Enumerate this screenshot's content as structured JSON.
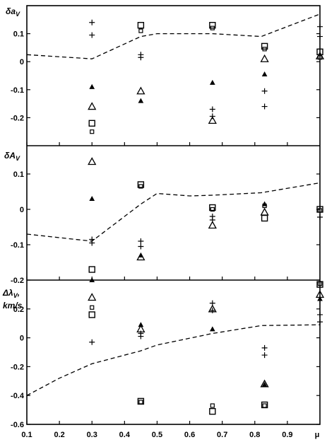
{
  "chart_data": {
    "type": "scatter",
    "x_ticks": [
      "0.1",
      "0.2",
      "0.3",
      "0.4",
      "0.5",
      "0.6",
      "0.7",
      "0.8",
      "0.9"
    ],
    "x_axis_symbol": "μ",
    "xlim": [
      0.1,
      1.0
    ],
    "panels": [
      {
        "ylabel": "δa_V",
        "ylim": [
          -0.3,
          0.2
        ],
        "y_ticks": [
          "0.1",
          "0",
          "-0.1",
          "-0.2"
        ],
        "y_tick_values": [
          0.1,
          0,
          -0.1,
          -0.2
        ],
        "dashed": {
          "x": [
            0.1,
            0.3,
            0.45,
            0.5,
            0.67,
            0.82,
            1.0
          ],
          "y": [
            0.025,
            0.01,
            0.09,
            0.1,
            0.1,
            0.09,
            0.17
          ]
        },
        "points": [
          {
            "m": "+",
            "x": 0.3,
            "y": 0.14
          },
          {
            "m": "+",
            "x": 0.3,
            "y": 0.095
          },
          {
            "m": "tri",
            "x": 0.3,
            "y": -0.16
          },
          {
            "m": "tri_s",
            "x": 0.3,
            "y": -0.09
          },
          {
            "m": "sq",
            "x": 0.3,
            "y": -0.22
          },
          {
            "m": "sq_s",
            "x": 0.3,
            "y": -0.25
          },
          {
            "m": "sq",
            "x": 0.45,
            "y": 0.13
          },
          {
            "m": "sq_s",
            "x": 0.45,
            "y": 0.11
          },
          {
            "m": "+",
            "x": 0.45,
            "y": 0.025
          },
          {
            "m": "+",
            "x": 0.45,
            "y": 0.015
          },
          {
            "m": "tri",
            "x": 0.45,
            "y": -0.105
          },
          {
            "m": "tri_s",
            "x": 0.45,
            "y": -0.14
          },
          {
            "m": "sq",
            "x": 0.67,
            "y": 0.13
          },
          {
            "m": "sq_s",
            "x": 0.67,
            "y": 0.12
          },
          {
            "m": "tri_s",
            "x": 0.67,
            "y": -0.075
          },
          {
            "m": "+",
            "x": 0.67,
            "y": -0.17
          },
          {
            "m": "+",
            "x": 0.67,
            "y": -0.195
          },
          {
            "m": "tri",
            "x": 0.67,
            "y": -0.21
          },
          {
            "m": "sq",
            "x": 0.83,
            "y": 0.055
          },
          {
            "m": "sq_s",
            "x": 0.83,
            "y": 0.045
          },
          {
            "m": "tri",
            "x": 0.83,
            "y": 0.01
          },
          {
            "m": "tri_s",
            "x": 0.83,
            "y": -0.045
          },
          {
            "m": "+",
            "x": 0.83,
            "y": -0.105
          },
          {
            "m": "+",
            "x": 0.83,
            "y": -0.16
          },
          {
            "m": "+",
            "x": 1.0,
            "y": 0.125
          },
          {
            "m": "+",
            "x": 1.0,
            "y": 0.09
          },
          {
            "m": "sq",
            "x": 1.0,
            "y": 0.035
          },
          {
            "m": "sq_s",
            "x": 1.0,
            "y": 0.015
          },
          {
            "m": "tri",
            "x": 1.0,
            "y": 0.02
          }
        ]
      },
      {
        "ylabel": "δA_V",
        "ylim": [
          -0.2,
          0.2
        ],
        "y_ticks": [
          "0.1",
          "0",
          "-0.1",
          "-0.2"
        ],
        "y_tick_values": [
          0.1,
          0,
          -0.1,
          -0.2
        ],
        "dashed": {
          "x": [
            0.1,
            0.3,
            0.45,
            0.5,
            0.6,
            0.67,
            0.82,
            1.0
          ],
          "y": [
            -0.07,
            -0.09,
            0.015,
            0.045,
            0.038,
            0.04,
            0.047,
            0.075
          ]
        },
        "points": [
          {
            "m": "tri",
            "x": 0.3,
            "y": 0.135
          },
          {
            "m": "tri_s",
            "x": 0.3,
            "y": 0.03
          },
          {
            "m": "+",
            "x": 0.3,
            "y": -0.085
          },
          {
            "m": "+",
            "x": 0.3,
            "y": -0.095
          },
          {
            "m": "sq",
            "x": 0.3,
            "y": -0.17
          },
          {
            "m": "tri_s",
            "x": 0.3,
            "y": -0.2
          },
          {
            "m": "sq",
            "x": 0.45,
            "y": 0.07
          },
          {
            "m": "sq_s",
            "x": 0.45,
            "y": 0.065
          },
          {
            "m": "+",
            "x": 0.45,
            "y": -0.09
          },
          {
            "m": "+",
            "x": 0.45,
            "y": -0.105
          },
          {
            "m": "tri",
            "x": 0.45,
            "y": -0.135
          },
          {
            "m": "tri_s",
            "x": 0.45,
            "y": -0.13
          },
          {
            "m": "sq",
            "x": 0.67,
            "y": 0.005
          },
          {
            "m": "sq_s",
            "x": 0.67,
            "y": 0.0
          },
          {
            "m": "+",
            "x": 0.67,
            "y": -0.02
          },
          {
            "m": "+",
            "x": 0.67,
            "y": -0.03
          },
          {
            "m": "tri",
            "x": 0.67,
            "y": -0.045
          },
          {
            "m": "tri_s",
            "x": 0.83,
            "y": 0.015
          },
          {
            "m": "sq_s",
            "x": 0.83,
            "y": 0.01
          },
          {
            "m": "tri",
            "x": 0.83,
            "y": -0.008
          },
          {
            "m": "sq",
            "x": 0.83,
            "y": -0.025
          },
          {
            "m": "sq",
            "x": 1.0,
            "y": 0.0
          },
          {
            "m": "sq_s",
            "x": 1.0,
            "y": -0.003
          },
          {
            "m": "+",
            "x": 1.0,
            "y": -0.022
          }
        ]
      },
      {
        "ylabel": "Δλ_V, km/s",
        "ylim": [
          -0.6,
          0.4
        ],
        "y_ticks": [
          "0.2",
          "0",
          "-0.2",
          "-0.4",
          "-0.6"
        ],
        "y_tick_values": [
          0.2,
          0,
          -0.2,
          -0.4,
          -0.6
        ],
        "dashed": {
          "x": [
            0.1,
            0.2,
            0.3,
            0.45,
            0.5,
            0.67,
            0.82,
            1.0
          ],
          "y": [
            -0.4,
            -0.28,
            -0.18,
            -0.09,
            -0.05,
            0.03,
            0.085,
            0.09
          ]
        },
        "points": [
          {
            "m": "tri",
            "x": 0.3,
            "y": 0.28
          },
          {
            "m": "sq_s",
            "x": 0.3,
            "y": 0.21
          },
          {
            "m": "sq",
            "x": 0.3,
            "y": 0.16
          },
          {
            "m": "+",
            "x": 0.3,
            "y": -0.03
          },
          {
            "m": "tri_s",
            "x": 0.45,
            "y": 0.09
          },
          {
            "m": "tri",
            "x": 0.45,
            "y": 0.06
          },
          {
            "m": "+",
            "x": 0.45,
            "y": 0.03
          },
          {
            "m": "+",
            "x": 0.45,
            "y": 0.01
          },
          {
            "m": "sq",
            "x": 0.45,
            "y": -0.44
          },
          {
            "m": "sq_s",
            "x": 0.45,
            "y": -0.445
          },
          {
            "m": "+",
            "x": 0.67,
            "y": 0.24
          },
          {
            "m": "tri",
            "x": 0.67,
            "y": 0.2
          },
          {
            "m": "+",
            "x": 0.67,
            "y": 0.19
          },
          {
            "m": "tri_s",
            "x": 0.67,
            "y": 0.06
          },
          {
            "m": "sq_s",
            "x": 0.67,
            "y": -0.47
          },
          {
            "m": "sq",
            "x": 0.67,
            "y": -0.51
          },
          {
            "m": "+",
            "x": 0.83,
            "y": -0.07
          },
          {
            "m": "+",
            "x": 0.83,
            "y": -0.12
          },
          {
            "m": "tri",
            "x": 0.83,
            "y": -0.32
          },
          {
            "m": "tri_s",
            "x": 0.83,
            "y": -0.325
          },
          {
            "m": "sq",
            "x": 0.83,
            "y": -0.465
          },
          {
            "m": "sq_s",
            "x": 0.83,
            "y": -0.47
          },
          {
            "m": "sq",
            "x": 1.0,
            "y": 0.37
          },
          {
            "m": "sq_s",
            "x": 1.0,
            "y": 0.375
          },
          {
            "m": "tri",
            "x": 1.0,
            "y": 0.3
          },
          {
            "m": "tri_s",
            "x": 1.0,
            "y": 0.27
          },
          {
            "m": "+",
            "x": 1.0,
            "y": 0.16
          },
          {
            "m": "+",
            "x": 1.0,
            "y": 0.11
          }
        ]
      }
    ]
  }
}
